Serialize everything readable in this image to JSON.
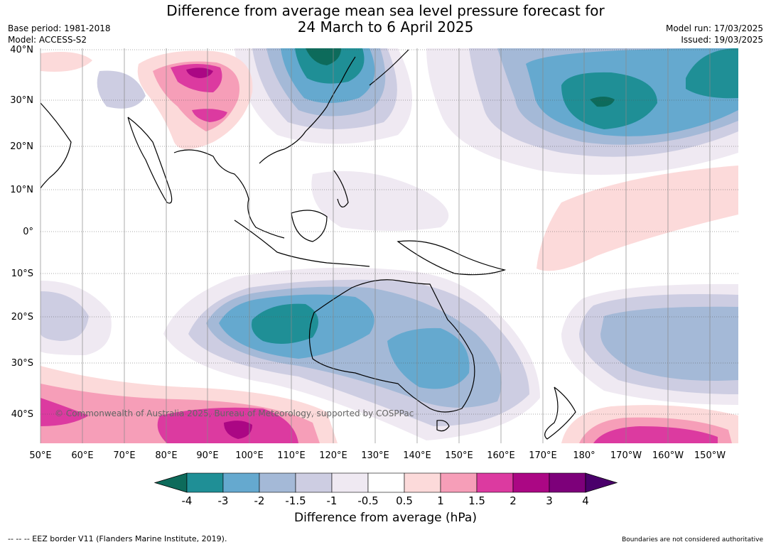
{
  "title": {
    "line1": "Difference from average mean sea level pressure forecast for",
    "line2": "24 March to 6 April 2025"
  },
  "meta": {
    "base_period": "Base period: 1981-2018",
    "model": "Model: ACCESS-S2",
    "model_run": "Model run: 17/03/2025",
    "issued": "Issued: 19/03/2025"
  },
  "map": {
    "latitude_labels": [
      "40°N",
      "30°N",
      "20°N",
      "10°N",
      "0°",
      "10°S",
      "20°S",
      "30°S",
      "40°S"
    ],
    "longitude_labels": [
      "50°E",
      "60°E",
      "70°E",
      "80°E",
      "90°E",
      "100°E",
      "110°E",
      "120°E",
      "130°E",
      "140°E",
      "150°E",
      "160°E",
      "170°E",
      "180°",
      "170°W",
      "160°W",
      "150°W"
    ],
    "copyright": "© Commonwealth of Australia 2025, Bureau of Meteorology, supported by COSPPac"
  },
  "colorbar": {
    "tick_labels": [
      "-4",
      "-3",
      "-2",
      "-1.5",
      "-1",
      "-0.5",
      "0.5",
      "1",
      "1.5",
      "2",
      "3",
      "4"
    ],
    "colors": [
      "#0d6b5b",
      "#1f8f96",
      "#65a9cf",
      "#a4b9d7",
      "#cdcde2",
      "#efe9f2",
      "#ffffff",
      "#fcdada",
      "#f69eb8",
      "#dc3aa0",
      "#ab0784",
      "#7d007a",
      "#4a006b"
    ],
    "title": "Difference from average (hPa)"
  },
  "footer": {
    "eez": "--  --  -- EEZ border V11 (Flanders Marine Institute, 2019).",
    "disclaimer": "Boundaries are not considered authoritative"
  }
}
